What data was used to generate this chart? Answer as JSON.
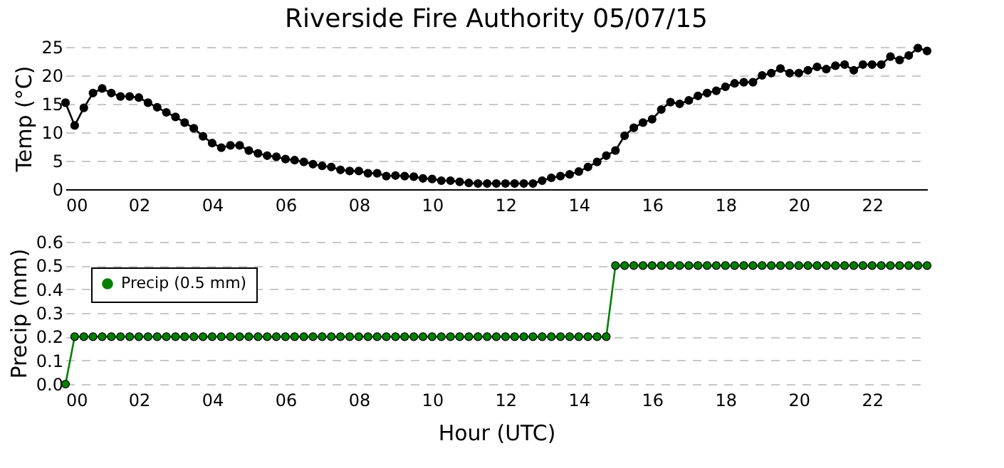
{
  "chart_data": [
    {
      "type": "line",
      "title": "Riverside Fire Authority 05/07/15",
      "ylabel": "Temp (°C)",
      "x": [
        0,
        0.25,
        0.5,
        0.75,
        1,
        1.25,
        1.5,
        1.75,
        2,
        2.25,
        2.5,
        2.75,
        3,
        3.25,
        3.5,
        3.75,
        4,
        4.25,
        4.5,
        4.75,
        5,
        5.25,
        5.5,
        5.75,
        6,
        6.25,
        6.5,
        6.75,
        7,
        7.25,
        7.5,
        7.75,
        8,
        8.25,
        8.5,
        8.75,
        9,
        9.25,
        9.5,
        9.75,
        10,
        10.25,
        10.5,
        10.75,
        11,
        11.25,
        11.5,
        11.75,
        12,
        12.25,
        12.5,
        12.75,
        13,
        13.25,
        13.5,
        13.75,
        14,
        14.25,
        14.5,
        14.75,
        15,
        15.25,
        15.5,
        15.75,
        16,
        16.25,
        16.5,
        16.75,
        17,
        17.25,
        17.5,
        17.75,
        18,
        18.25,
        18.5,
        18.75,
        19,
        19.25,
        19.5,
        19.75,
        20,
        20.25,
        20.5,
        20.75,
        21,
        21.25,
        21.5,
        21.75,
        22,
        22.25,
        22.5,
        22.75,
        23,
        23.25,
        23.5
      ],
      "series": [
        {
          "color": "#000000",
          "values": [
            15.2,
            11.2,
            14.3,
            16.9,
            17.7,
            16.9,
            16.3,
            16.3,
            16.1,
            15.2,
            14.4,
            13.5,
            12.7,
            11.7,
            10.7,
            9.3,
            8.1,
            7.3,
            7.7,
            7.7,
            6.8,
            6.3,
            5.9,
            5.7,
            5.3,
            5.1,
            4.8,
            4.4,
            4.1,
            3.9,
            3.4,
            3.2,
            3.2,
            2.8,
            2.8,
            2.3,
            2.4,
            2.3,
            2.2,
            1.9,
            1.8,
            1.5,
            1.5,
            1.3,
            1.1,
            1.0,
            1.0,
            1.0,
            1.0,
            1.0,
            1.0,
            1.0,
            1.5,
            2.0,
            2.3,
            2.6,
            3.1,
            3.9,
            4.8,
            5.9,
            6.8,
            9.4,
            10.8,
            11.7,
            12.3,
            14.0,
            15.3,
            15.0,
            15.6,
            16.4,
            16.9,
            17.3,
            18.0,
            18.6,
            18.8,
            18.8,
            20.0,
            20.4,
            21.2,
            20.4,
            20.4,
            20.9,
            21.5,
            21.1,
            21.7,
            21.9,
            20.9,
            21.9,
            21.9,
            21.9,
            23.3,
            22.7,
            23.5,
            24.8,
            24.3
          ]
        }
      ],
      "xlim": [
        0,
        23.5
      ],
      "xticks": [
        {
          "value": 0,
          "label": "00"
        },
        {
          "value": 2,
          "label": "02"
        },
        {
          "value": 4,
          "label": "04"
        },
        {
          "value": 6,
          "label": "06"
        },
        {
          "value": 8,
          "label": "08"
        },
        {
          "value": 10,
          "label": "10"
        },
        {
          "value": 12,
          "label": "12"
        },
        {
          "value": 14,
          "label": "14"
        },
        {
          "value": 16,
          "label": "16"
        },
        {
          "value": 18,
          "label": "18"
        },
        {
          "value": 20,
          "label": "20"
        },
        {
          "value": 22,
          "label": "22"
        }
      ],
      "ylim": [
        0,
        25
      ],
      "yticks": [
        0,
        5,
        10,
        15,
        20,
        25
      ],
      "grid": "y",
      "marker": "circle",
      "line_style": "solid",
      "legend": false
    },
    {
      "type": "line",
      "xlabel": "Hour (UTC)",
      "ylabel": "Precip (mm)",
      "x": [
        0,
        0.25,
        0.5,
        0.75,
        1,
        1.25,
        1.5,
        1.75,
        2,
        2.25,
        2.5,
        2.75,
        3,
        3.25,
        3.5,
        3.75,
        4,
        4.25,
        4.5,
        4.75,
        5,
        5.25,
        5.5,
        5.75,
        6,
        6.25,
        6.5,
        6.75,
        7,
        7.25,
        7.5,
        7.75,
        8,
        8.25,
        8.5,
        8.75,
        9,
        9.25,
        9.5,
        9.75,
        10,
        10.25,
        10.5,
        10.75,
        11,
        11.25,
        11.5,
        11.75,
        12,
        12.25,
        12.5,
        12.75,
        13,
        13.25,
        13.5,
        13.75,
        14,
        14.25,
        14.5,
        14.75,
        15,
        15.25,
        15.5,
        15.75,
        16,
        16.25,
        16.5,
        16.75,
        17,
        17.25,
        17.5,
        17.75,
        18,
        18.25,
        18.5,
        18.75,
        19,
        19.25,
        19.5,
        19.75,
        20,
        20.25,
        20.5,
        20.75,
        21,
        21.25,
        21.5,
        21.75,
        22,
        22.25,
        22.5,
        22.75,
        23,
        23.25,
        23.5
      ],
      "series": [
        {
          "name": "Precip (0.5 mm)",
          "color": "#008000",
          "values": [
            0,
            0.2,
            0.2,
            0.2,
            0.2,
            0.2,
            0.2,
            0.2,
            0.2,
            0.2,
            0.2,
            0.2,
            0.2,
            0.2,
            0.2,
            0.2,
            0.2,
            0.2,
            0.2,
            0.2,
            0.2,
            0.2,
            0.2,
            0.2,
            0.2,
            0.2,
            0.2,
            0.2,
            0.2,
            0.2,
            0.2,
            0.2,
            0.2,
            0.2,
            0.2,
            0.2,
            0.2,
            0.2,
            0.2,
            0.2,
            0.2,
            0.2,
            0.2,
            0.2,
            0.2,
            0.2,
            0.2,
            0.2,
            0.2,
            0.2,
            0.2,
            0.2,
            0.2,
            0.2,
            0.2,
            0.2,
            0.2,
            0.2,
            0.2,
            0.2,
            0.5,
            0.5,
            0.5,
            0.5,
            0.5,
            0.5,
            0.5,
            0.5,
            0.5,
            0.5,
            0.5,
            0.5,
            0.5,
            0.5,
            0.5,
            0.5,
            0.5,
            0.5,
            0.5,
            0.5,
            0.5,
            0.5,
            0.5,
            0.5,
            0.5,
            0.5,
            0.5,
            0.5,
            0.5,
            0.5,
            0.5,
            0.5,
            0.5,
            0.5,
            0.5
          ]
        }
      ],
      "xlim": [
        0,
        23.5
      ],
      "xticks": [
        {
          "value": 0,
          "label": "00"
        },
        {
          "value": 2,
          "label": "02"
        },
        {
          "value": 4,
          "label": "04"
        },
        {
          "value": 6,
          "label": "06"
        },
        {
          "value": 8,
          "label": "08"
        },
        {
          "value": 10,
          "label": "10"
        },
        {
          "value": 12,
          "label": "12"
        },
        {
          "value": 14,
          "label": "14"
        },
        {
          "value": 16,
          "label": "16"
        },
        {
          "value": 18,
          "label": "18"
        },
        {
          "value": 20,
          "label": "20"
        },
        {
          "value": 22,
          "label": "22"
        }
      ],
      "ylim": [
        0,
        0.6
      ],
      "yticks": [
        {
          "value": 0,
          "label": "0.0"
        },
        {
          "value": 0.1,
          "label": "0.1"
        },
        {
          "value": 0.2,
          "label": "0.2"
        },
        {
          "value": 0.3,
          "label": "0.3"
        },
        {
          "value": 0.4,
          "label": "0.4"
        },
        {
          "value": 0.5,
          "label": "0.5"
        },
        {
          "value": 0.6,
          "label": "0.6"
        }
      ],
      "grid": "y",
      "marker": "circle",
      "line_style": "solid",
      "legend": "top left"
    }
  ]
}
